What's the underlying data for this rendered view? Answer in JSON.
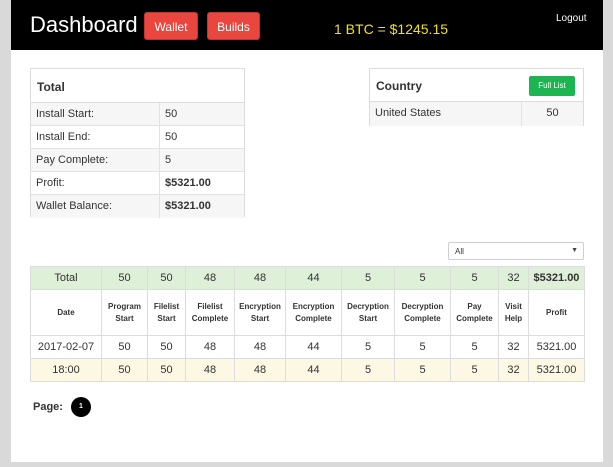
{
  "header": {
    "title": "Dashboard",
    "wallet_label": "Wallet",
    "builds_label": "Builds",
    "btc_rate": "1 BTC = $1245.15",
    "logout_label": "Logout"
  },
  "total_panel": {
    "title": "Total",
    "rows": [
      {
        "label": "Install Start:",
        "value": "50"
      },
      {
        "label": "Install End:",
        "value": "50"
      },
      {
        "label": "Pay Complete:",
        "value": "5"
      },
      {
        "label": "Profit:",
        "value": "$5321.00"
      },
      {
        "label": "Wallet Balance:",
        "value": "$5321.00"
      }
    ]
  },
  "country_panel": {
    "title": "Country",
    "full_list_label": "Full List",
    "rows": [
      {
        "country": "United States",
        "count": "50"
      }
    ]
  },
  "filter": {
    "selected": "All"
  },
  "stats_table": {
    "total_row": [
      "Total",
      "50",
      "50",
      "48",
      "48",
      "44",
      "5",
      "5",
      "5",
      "32",
      "$5321.00"
    ],
    "headers": [
      [
        "Date"
      ],
      [
        "Program",
        "Start"
      ],
      [
        "Filelist",
        "Start"
      ],
      [
        "Filelist",
        "Complete"
      ],
      [
        "Encryption",
        "Start"
      ],
      [
        "Encryption",
        "Complete"
      ],
      [
        "Decryption",
        "Start"
      ],
      [
        "Decryption",
        "Complete"
      ],
      [
        "Pay",
        "Complete"
      ],
      [
        "Visit",
        "Help"
      ],
      [
        "Profit"
      ]
    ],
    "date_row": [
      "2017-02-07",
      "50",
      "50",
      "48",
      "48",
      "44",
      "5",
      "5",
      "5",
      "32",
      "5321.00"
    ],
    "hour_row": [
      "18:00",
      "50",
      "50",
      "48",
      "48",
      "44",
      "5",
      "5",
      "5",
      "32",
      "5321.00"
    ]
  },
  "pagination": {
    "label": "Page:",
    "current_page": "1"
  },
  "colors": {
    "topbar": "#000000",
    "red_button": "#e8463f",
    "green_button": "#1db552",
    "btc_text": "#f2e11b",
    "total_row_bg": "#dff0d8",
    "hour_row_bg": "#fcf8e3"
  }
}
